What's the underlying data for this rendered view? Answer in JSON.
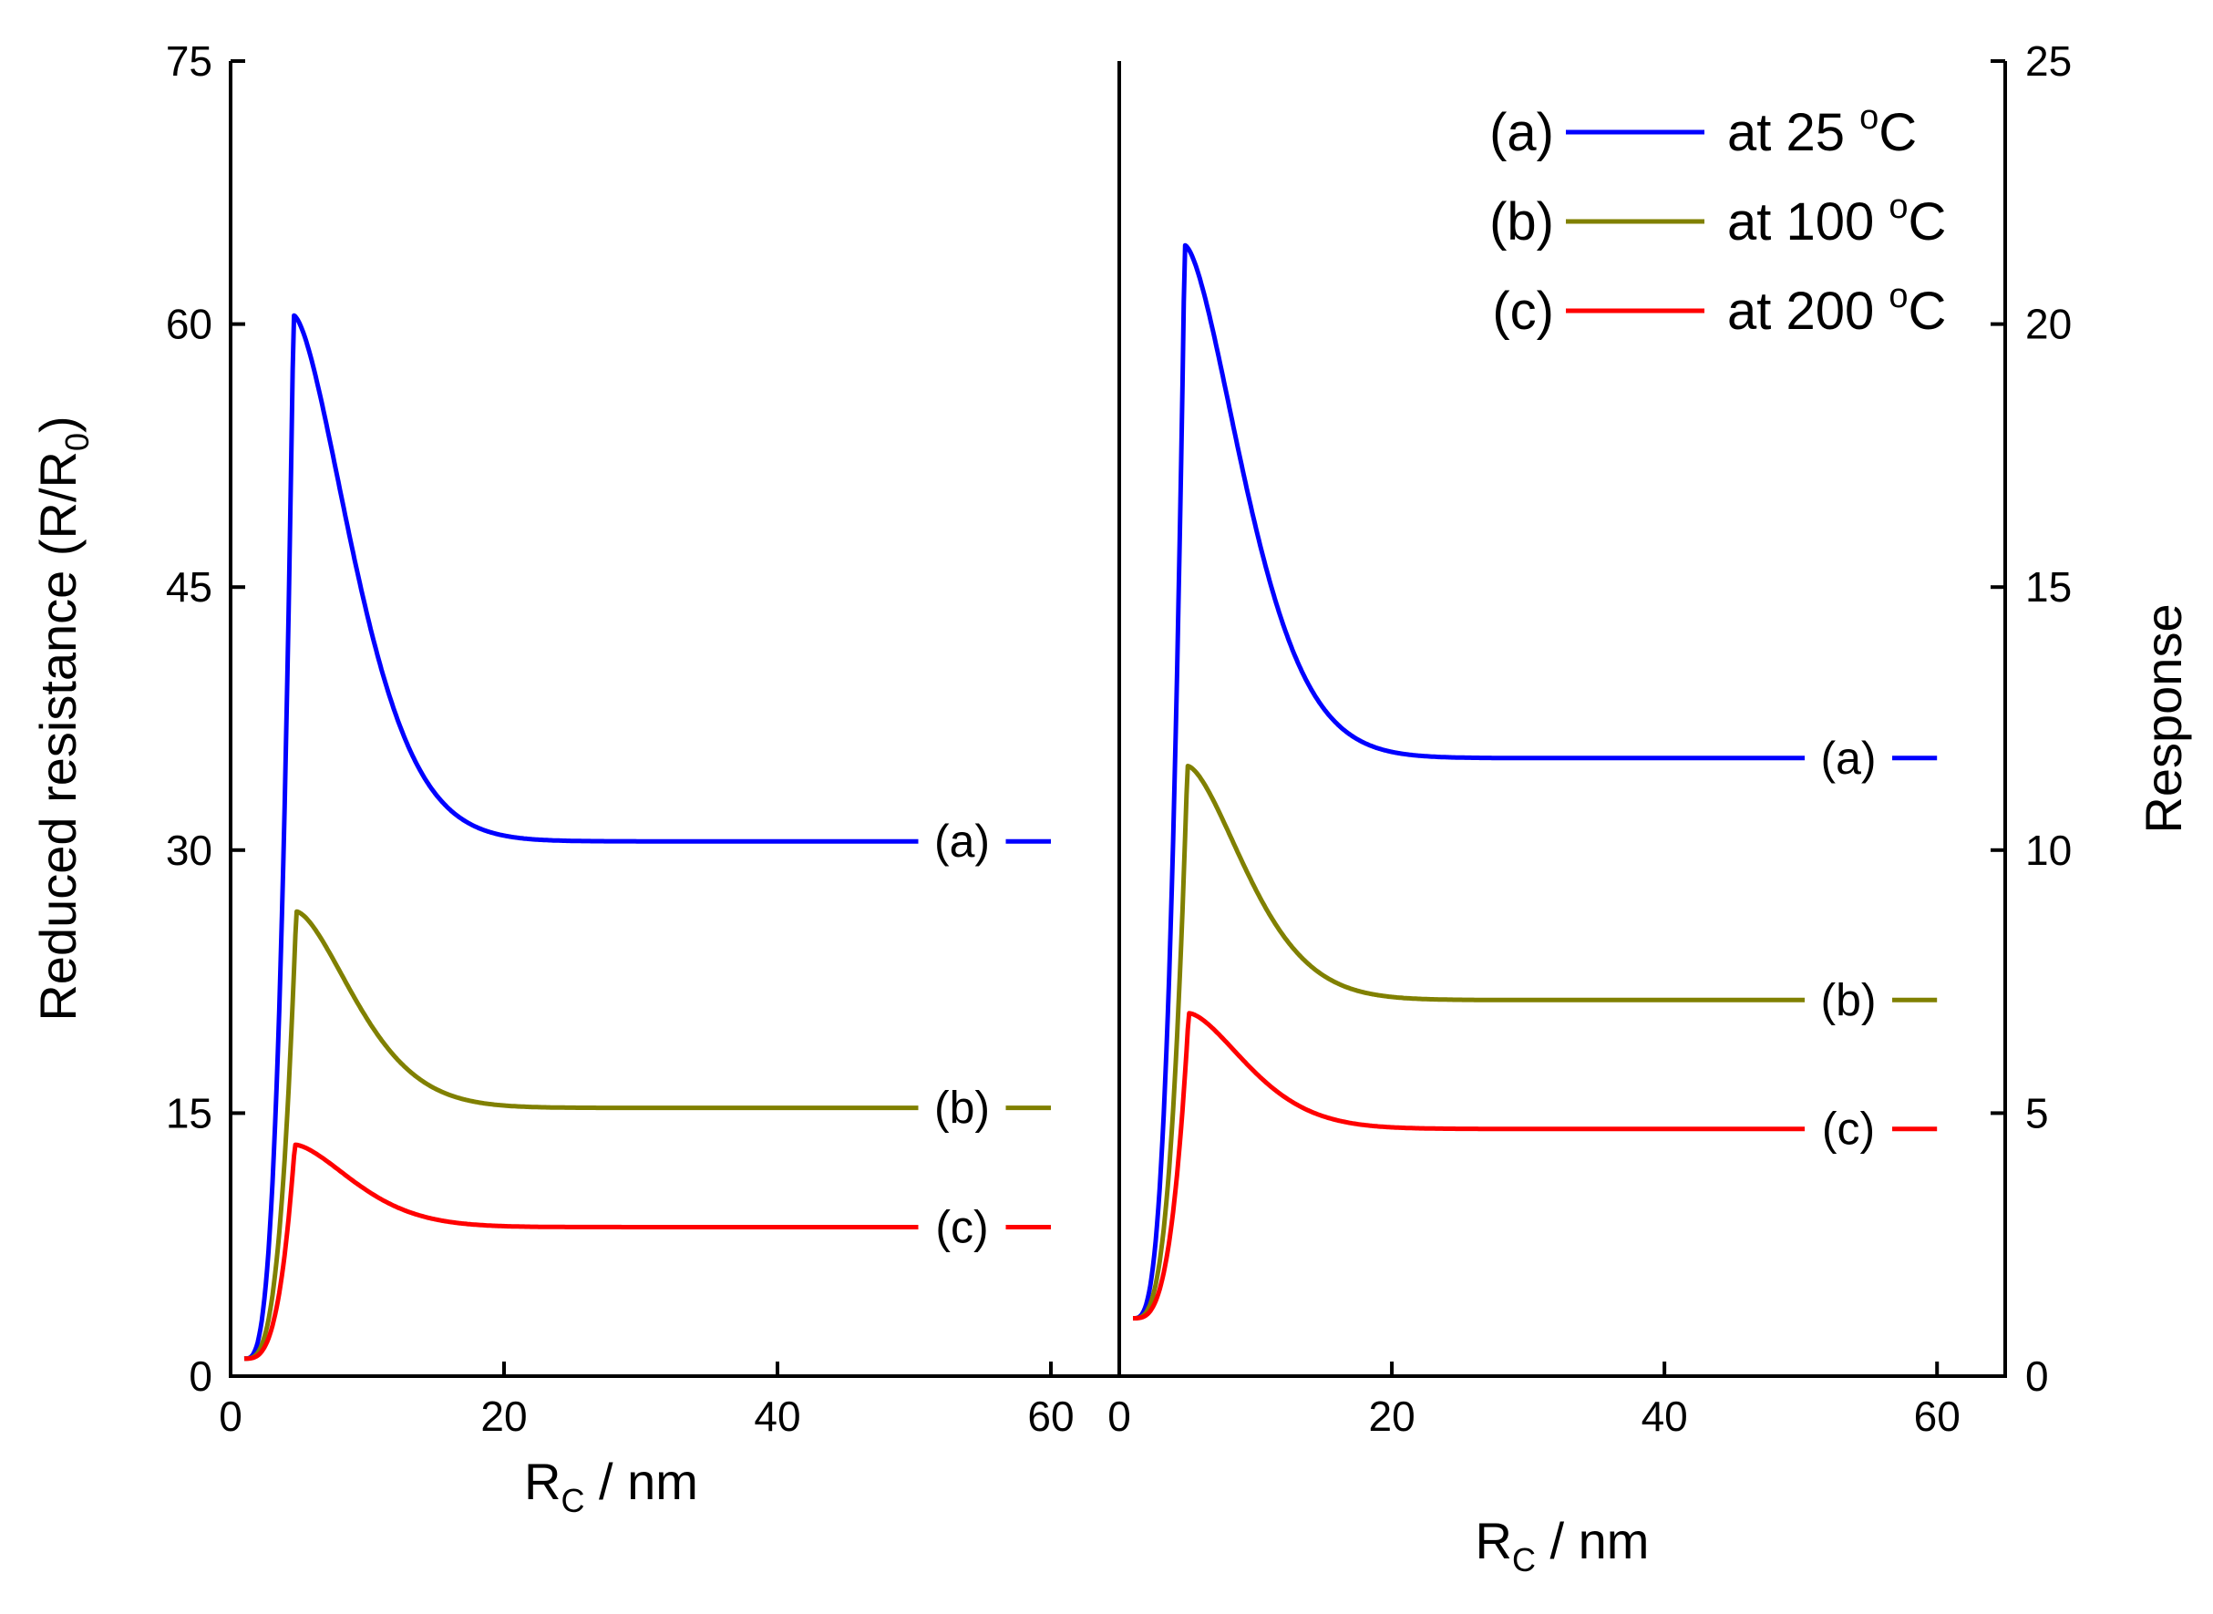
{
  "chart_data": [
    {
      "type": "line",
      "panel": "left",
      "title": "",
      "xlabel_main": "R",
      "xlabel_sub": "C",
      "xlabel_rest": " / nm",
      "ylabel_main": "Reduced resistance (R/R",
      "ylabel_sub": "0",
      "ylabel_end": ")",
      "xlim": [
        0,
        65
      ],
      "ylim": [
        0,
        75
      ],
      "xticks": [
        0,
        20,
        40,
        60
      ],
      "xtick_labels": [
        "0",
        "20",
        "40",
        "60"
      ],
      "yticks": [
        0,
        15,
        30,
        45,
        60,
        75
      ],
      "ytick_labels": [
        "0",
        "15",
        "30",
        "45",
        "60",
        "75"
      ],
      "series": [
        {
          "name": "(a)",
          "color": "#0000ff",
          "start": 1,
          "peak_x": 4.6,
          "peak": 60.5,
          "plateau": 30.5,
          "label": "(a)"
        },
        {
          "name": "(b)",
          "color": "#808000",
          "start": 1,
          "peak_x": 4.8,
          "peak": 26.5,
          "plateau": 15.3,
          "label": "(b)"
        },
        {
          "name": "(c)",
          "color": "#ff0000",
          "start": 1,
          "peak_x": 4.7,
          "peak": 13.2,
          "plateau": 8.5,
          "label": "(c)"
        }
      ]
    },
    {
      "type": "line",
      "panel": "right",
      "title": "",
      "xlabel_main": "R",
      "xlabel_sub": "C",
      "xlabel_rest": " / nm",
      "ylabel": "Response",
      "xlim": [
        0,
        65
      ],
      "ylim": [
        0,
        25
      ],
      "xticks": [
        0,
        20,
        40,
        60
      ],
      "xtick_labels": [
        "0",
        "20",
        "40",
        "60"
      ],
      "yticks": [
        0,
        5,
        10,
        15,
        20,
        25
      ],
      "ytick_labels": [
        "0",
        "5",
        "10",
        "15",
        "20",
        "25"
      ],
      "series": [
        {
          "name": "(a)",
          "color": "#0000ff",
          "start": 1.1,
          "peak_x": 4.8,
          "peak": 21.5,
          "plateau": 11.75,
          "label": "(a)"
        },
        {
          "name": "(b)",
          "color": "#808000",
          "start": 1.1,
          "peak_x": 5.0,
          "peak": 11.6,
          "plateau": 7.15,
          "label": "(b)"
        },
        {
          "name": "(c)",
          "color": "#ff0000",
          "start": 1.1,
          "peak_x": 5.1,
          "peak": 6.9,
          "plateau": 4.7,
          "label": "(c)"
        }
      ]
    }
  ],
  "legend": {
    "placement": "top-right",
    "entries": [
      {
        "tag": "(a)",
        "text": "at 25 ",
        "deg": "o",
        "unit": "C",
        "color": "#0000ff"
      },
      {
        "tag": "(b)",
        "text": "at 100 ",
        "deg": "o",
        "unit": "C",
        "color": "#808000"
      },
      {
        "tag": "(c)",
        "text": "at 200 ",
        "deg": "o",
        "unit": "C",
        "color": "#ff0000"
      }
    ]
  }
}
